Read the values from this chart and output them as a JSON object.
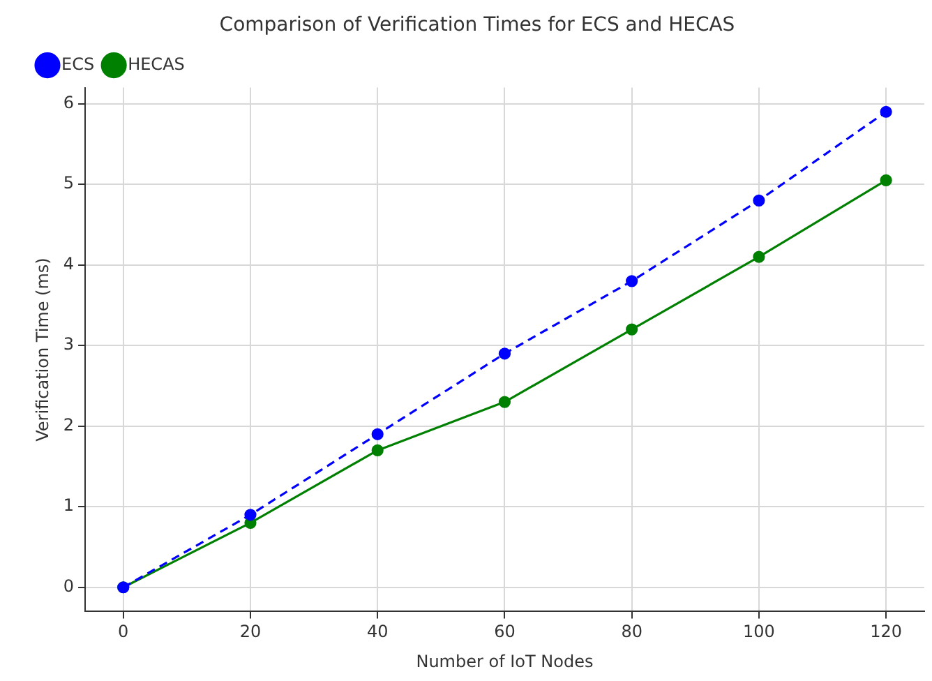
{
  "chart_data": {
    "type": "line",
    "title": "Comparison of Verification Times for ECS and HECAS",
    "xlabel": "Number of IoT Nodes",
    "ylabel": "Verification Time (ms)",
    "x": [
      0,
      20,
      40,
      60,
      80,
      100,
      120
    ],
    "series": [
      {
        "name": "ECS",
        "color": "#0000ff",
        "values": [
          0,
          0.9,
          1.9,
          2.9,
          3.8,
          4.8,
          5.9
        ],
        "line_style": "dashed"
      },
      {
        "name": "HECAS",
        "color": "#008000",
        "values": [
          0,
          0.8,
          1.7,
          2.3,
          3.2,
          4.1,
          5.05
        ],
        "line_style": "solid"
      }
    ],
    "xlim": [
      -6,
      126
    ],
    "xticks": [
      0,
      20,
      40,
      60,
      80,
      100,
      120
    ],
    "ylim": [
      -0.3,
      6.2
    ],
    "yticks": [
      0,
      1,
      2,
      3,
      4,
      5,
      6
    ],
    "grid": true,
    "legend": "top left",
    "marker": "circle"
  }
}
